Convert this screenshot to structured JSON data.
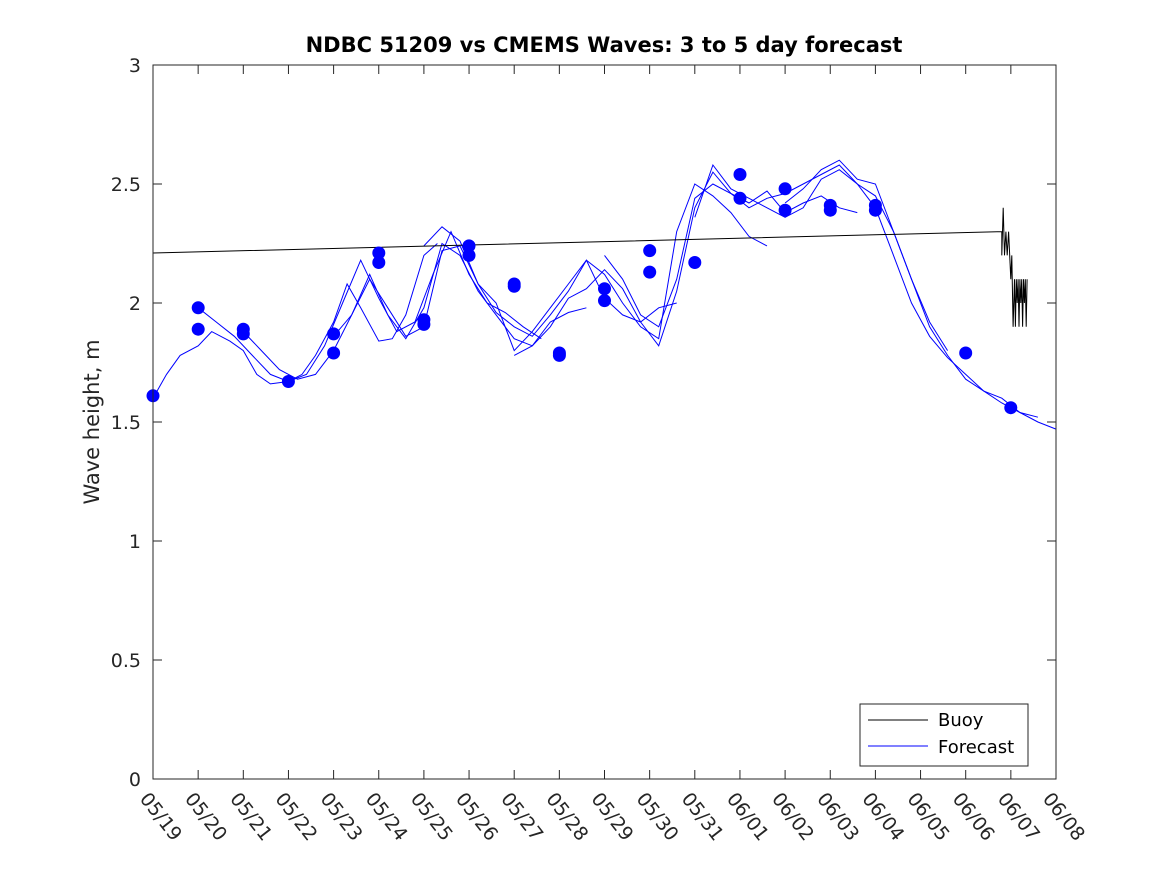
{
  "chart_data": {
    "type": "line",
    "title": "NDBC 51209 vs CMEMS Waves: 3 to 5 day forecast",
    "xlabel": "",
    "ylabel": "Wave height, m",
    "xlim": [
      "05/19",
      "06/08"
    ],
    "ylim": [
      0,
      3
    ],
    "x_tick_labels": [
      "05/19",
      "05/20",
      "05/21",
      "05/22",
      "05/23",
      "05/24",
      "05/25",
      "05/26",
      "05/27",
      "05/28",
      "05/29",
      "05/30",
      "05/31",
      "06/01",
      "06/02",
      "06/03",
      "06/04",
      "06/05",
      "06/06",
      "06/07",
      "06/08"
    ],
    "y_ticks": [
      0,
      0.5,
      1,
      1.5,
      2,
      2.5,
      3
    ],
    "y_tick_labels": [
      "0",
      "0.5",
      "1",
      "1.5",
      "2",
      "2.5",
      "3"
    ],
    "grid": false,
    "legend": {
      "position": "bottom-right",
      "entries": [
        "Buoy",
        "Forecast"
      ]
    },
    "colors": {
      "buoy": "#000000",
      "forecast": "#0000ff",
      "axes": "#262626"
    },
    "buoy": {
      "name": "Buoy",
      "x": [
        0.0,
        18.8,
        18.8,
        18.83,
        18.86,
        18.89,
        18.92,
        18.95,
        19.0,
        19.02,
        19.05,
        19.08,
        19.1,
        19.12,
        19.14,
        19.16,
        19.18,
        19.2,
        19.22,
        19.24,
        19.26,
        19.28,
        19.3,
        19.32,
        19.34,
        19.36
      ],
      "y": [
        2.21,
        2.3,
        2.2,
        2.4,
        2.2,
        2.3,
        2.2,
        2.3,
        2.1,
        2.2,
        1.9,
        2.1,
        1.9,
        2.1,
        2.0,
        2.1,
        1.9,
        2.1,
        2.0,
        2.1,
        1.9,
        2.1,
        2.0,
        2.1,
        1.9,
        2.1
      ]
    },
    "forecast": {
      "name": "Forecast",
      "series": [
        {
          "x": [
            0.0,
            0.3,
            0.6,
            1.0,
            1.3,
            1.7,
            2.0,
            2.3,
            2.6,
            3.0,
            3.3,
            3.6,
            4.0,
            4.3,
            4.6,
            5.0,
            5.3,
            5.6,
            6.0,
            6.3
          ],
          "y": [
            1.6,
            1.7,
            1.78,
            1.82,
            1.88,
            1.84,
            1.8,
            1.7,
            1.66,
            1.67,
            1.7,
            1.78,
            1.92,
            2.08,
            1.98,
            1.84,
            1.85,
            1.95,
            2.2,
            2.25
          ]
        },
        {
          "x": [
            1.0,
            1.4,
            1.8,
            2.2,
            2.6,
            3.0,
            3.4,
            3.8,
            4.2,
            4.6,
            5.0,
            5.4,
            5.8,
            6.2,
            6.6,
            7.0,
            7.4,
            7.8,
            8.2,
            8.6
          ],
          "y": [
            1.98,
            1.92,
            1.86,
            1.78,
            1.7,
            1.67,
            1.7,
            1.82,
            2.0,
            2.18,
            2.02,
            1.88,
            1.92,
            2.12,
            2.3,
            2.12,
            2.0,
            1.96,
            1.9,
            1.85
          ]
        },
        {
          "x": [
            2.0,
            2.4,
            2.8,
            3.2,
            3.6,
            4.0,
            4.4,
            4.8,
            5.2,
            5.6,
            6.0,
            6.4,
            6.8,
            7.2,
            7.6,
            8.0,
            8.4,
            8.8,
            9.2,
            9.6
          ],
          "y": [
            1.88,
            1.8,
            1.72,
            1.68,
            1.7,
            1.8,
            1.95,
            2.12,
            1.95,
            1.85,
            1.98,
            2.25,
            2.2,
            2.05,
            1.95,
            1.85,
            1.82,
            1.92,
            1.96,
            1.98
          ]
        },
        {
          "x": [
            4.0,
            4.4,
            4.8,
            5.2,
            5.6,
            6.0,
            6.4,
            6.8,
            7.2,
            7.6,
            8.0,
            8.4,
            8.8,
            9.2,
            9.6,
            10.0,
            10.4,
            10.8,
            11.2,
            11.6
          ],
          "y": [
            1.86,
            1.95,
            2.1,
            1.98,
            1.86,
            1.9,
            2.22,
            2.24,
            2.08,
            2.0,
            1.8,
            1.88,
            1.98,
            2.08,
            2.18,
            2.02,
            1.95,
            1.92,
            1.98,
            2.0
          ]
        },
        {
          "x": [
            6.0,
            6.4,
            6.8,
            7.2,
            7.6,
            8.0,
            8.4,
            8.8,
            9.2,
            9.6,
            10.0,
            10.4,
            10.8,
            11.2,
            11.6,
            12.0,
            12.4,
            12.8,
            13.2,
            13.6
          ],
          "y": [
            2.24,
            2.32,
            2.26,
            2.08,
            1.96,
            1.9,
            1.86,
            1.95,
            2.05,
            2.18,
            2.12,
            2.0,
            1.9,
            1.85,
            2.3,
            2.5,
            2.45,
            2.38,
            2.28,
            2.24
          ]
        },
        {
          "x": [
            8.0,
            8.4,
            8.8,
            9.2,
            9.6,
            10.0,
            10.4,
            10.8,
            11.2,
            11.6,
            12.0,
            12.4,
            12.8,
            13.2,
            13.6,
            14.0,
            14.4,
            14.8,
            15.2,
            15.6
          ],
          "y": [
            1.78,
            1.82,
            1.9,
            2.02,
            2.06,
            2.14,
            2.06,
            1.92,
            1.82,
            2.05,
            2.4,
            2.55,
            2.46,
            2.42,
            2.47,
            2.38,
            2.42,
            2.45,
            2.4,
            2.38
          ]
        },
        {
          "x": [
            10.0,
            10.4,
            10.8,
            11.2,
            11.6,
            12.0,
            12.4,
            12.8,
            13.2,
            13.6,
            14.0,
            14.4,
            14.8,
            15.2,
            15.6,
            16.0,
            16.4,
            16.8,
            17.2,
            17.6
          ],
          "y": [
            2.2,
            2.1,
            1.95,
            1.9,
            2.1,
            2.44,
            2.5,
            2.46,
            2.4,
            2.44,
            2.46,
            2.5,
            2.54,
            2.58,
            2.5,
            2.45,
            2.3,
            2.1,
            1.92,
            1.8
          ]
        },
        {
          "x": [
            12.0,
            12.4,
            12.8,
            13.2,
            13.6,
            14.0,
            14.4,
            14.8,
            15.2,
            15.6,
            16.0,
            16.4,
            16.8,
            17.2,
            17.6,
            18.0,
            18.4,
            18.8,
            19.2,
            19.6
          ],
          "y": [
            2.36,
            2.58,
            2.48,
            2.44,
            2.4,
            2.36,
            2.4,
            2.52,
            2.56,
            2.5,
            2.4,
            2.2,
            2.0,
            1.86,
            1.77,
            1.7,
            1.63,
            1.6,
            1.54,
            1.52
          ]
        },
        {
          "x": [
            14.0,
            14.4,
            14.8,
            15.2,
            15.6,
            16.0,
            16.4,
            16.8,
            17.2,
            17.6,
            18.0,
            18.4,
            18.8,
            19.2,
            19.6,
            20.0
          ],
          "y": [
            2.42,
            2.48,
            2.56,
            2.6,
            2.52,
            2.5,
            2.3,
            2.1,
            1.9,
            1.78,
            1.68,
            1.63,
            1.58,
            1.54,
            1.5,
            1.47
          ]
        }
      ]
    },
    "forecast_markers": {
      "x": [
        0.0,
        1.0,
        1.0,
        2.0,
        2.0,
        3.0,
        4.0,
        4.0,
        5.0,
        5.0,
        6.0,
        6.0,
        7.0,
        7.0,
        8.0,
        8.0,
        9.0,
        9.0,
        10.0,
        10.0,
        11.0,
        11.0,
        12.0,
        13.0,
        13.0,
        14.0,
        14.0,
        15.0,
        15.0,
        16.0,
        16.0,
        18.0,
        19.0
      ],
      "y": [
        1.61,
        1.98,
        1.89,
        1.89,
        1.87,
        1.67,
        1.87,
        1.79,
        2.21,
        2.17,
        1.93,
        1.91,
        2.24,
        2.2,
        2.08,
        2.07,
        1.79,
        1.78,
        2.06,
        2.01,
        2.22,
        2.13,
        2.17,
        2.54,
        2.44,
        2.48,
        2.39,
        2.41,
        2.39,
        2.41,
        2.39,
        1.79,
        1.56
      ]
    }
  }
}
